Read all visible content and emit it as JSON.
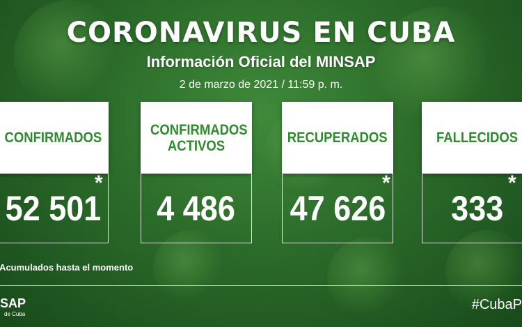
{
  "header": {
    "title": "CORONAVIRUS EN CUBA",
    "subtitle": "Información Oficial del MINSAP",
    "date": "2 de marzo de 2021 / 11:59 p. m."
  },
  "stats": [
    {
      "label": "CONFIRMADOS",
      "value": "52 501",
      "asterisk": "*"
    },
    {
      "label": "CONFIRMADOS ACTIVOS",
      "value": "4 486",
      "asterisk": ""
    },
    {
      "label": "RECUPERADOS",
      "value": "47 626",
      "asterisk": "*"
    },
    {
      "label": "FALLECIDOS",
      "value": "333",
      "asterisk": "*"
    }
  ],
  "footnote": "*Acumulados hasta el momento",
  "footer": {
    "logo": "SAP",
    "logo_sub": "de Cuba",
    "hashtag": "#CubaP"
  },
  "colors": {
    "background": "#2b6b2a",
    "card_text": "#2e8b2e",
    "card_bg": "#ffffff"
  }
}
